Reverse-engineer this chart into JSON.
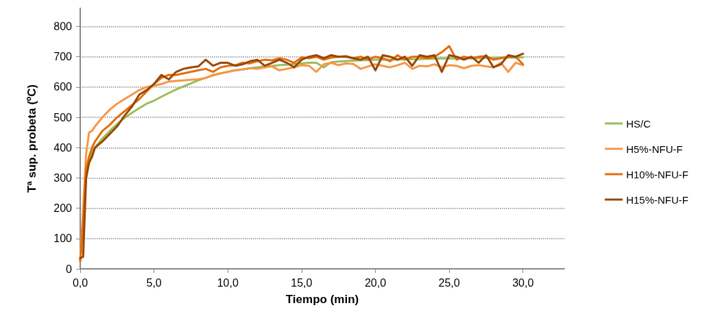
{
  "chart_data": {
    "type": "line",
    "xlabel": "Tiempo (min)",
    "ylabel": "Tª sup. probeta (ºC)",
    "x": [
      0,
      0.2,
      0.4,
      0.6,
      0.8,
      1,
      1.5,
      2,
      2.5,
      3,
      3.5,
      4,
      4.5,
      5,
      5.5,
      6,
      6.5,
      7,
      7.5,
      8,
      8.5,
      9,
      9.5,
      10,
      10.5,
      11,
      11.5,
      12,
      12.5,
      13,
      13.5,
      14,
      14.5,
      15,
      15.5,
      16,
      16.5,
      17,
      17.5,
      18,
      18.5,
      19,
      19.5,
      20,
      20.5,
      21,
      21.5,
      22,
      22.5,
      23,
      23.5,
      24,
      24.5,
      25,
      25.5,
      26,
      26.5,
      27,
      27.5,
      28,
      28.5,
      29,
      29.5,
      30
    ],
    "series": [
      {
        "name": "HS/C",
        "color": "#9bbb59",
        "values": [
          30,
          150,
          300,
          360,
          385,
          400,
          430,
          455,
          478,
          498,
          515,
          530,
          545,
          555,
          568,
          580,
          592,
          602,
          612,
          622,
          630,
          638,
          645,
          650,
          655,
          658,
          662,
          665,
          668,
          670,
          672,
          674,
          676,
          678,
          680,
          680,
          665,
          682,
          684,
          686,
          687,
          688,
          689,
          690,
          690,
          690,
          691,
          692,
          692,
          692,
          693,
          693,
          694,
          694,
          694,
          695,
          695,
          695,
          696,
          696,
          697,
          697,
          697,
          698
        ]
      },
      {
        "name": "H5%-NFU-F",
        "color": "#f79646",
        "values": [
          25,
          200,
          380,
          450,
          455,
          470,
          500,
          525,
          545,
          560,
          575,
          590,
          600,
          605,
          610,
          618,
          620,
          622,
          624,
          625,
          630,
          640,
          645,
          650,
          655,
          658,
          662,
          660,
          665,
          668,
          655,
          660,
          665,
          672,
          670,
          650,
          675,
          680,
          672,
          678,
          676,
          660,
          668,
          675,
          670,
          665,
          672,
          680,
          660,
          670,
          668,
          675,
          665,
          672,
          670,
          662,
          670,
          672,
          668,
          665,
          680,
          650,
          680,
          672
        ]
      },
      {
        "name": "H10%-NFU-F",
        "color": "#e46c0a",
        "values": [
          25,
          150,
          330,
          370,
          400,
          420,
          455,
          475,
          500,
          520,
          540,
          560,
          585,
          610,
          630,
          640,
          640,
          645,
          650,
          655,
          660,
          650,
          665,
          670,
          672,
          680,
          678,
          685,
          690,
          688,
          695,
          690,
          680,
          698,
          695,
          700,
          690,
          697,
          700,
          702,
          695,
          700,
          690,
          700,
          695,
          685,
          705,
          690,
          700,
          700,
          695,
          700,
          715,
          735,
          690,
          700,
          695,
          700,
          702,
          690,
          695,
          700,
          700,
          675
        ]
      },
      {
        "name": "H15%-NFU-F",
        "color": "#974706",
        "values": [
          35,
          40,
          300,
          350,
          370,
          400,
          420,
          445,
          470,
          505,
          535,
          575,
          590,
          610,
          640,
          625,
          650,
          660,
          665,
          668,
          690,
          670,
          680,
          680,
          670,
          675,
          685,
          690,
          670,
          680,
          690,
          680,
          665,
          690,
          700,
          705,
          695,
          705,
          700,
          700,
          695,
          690,
          700,
          655,
          705,
          700,
          690,
          700,
          670,
          705,
          700,
          705,
          650,
          705,
          700,
          690,
          700,
          680,
          705,
          665,
          675,
          705,
          700,
          710
        ]
      }
    ],
    "xlim": [
      0,
      32.8
    ],
    "xticks": [
      {
        "value": 0,
        "label": "0,0"
      },
      {
        "value": 5,
        "label": "5,0"
      },
      {
        "value": 10,
        "label": "10,0"
      },
      {
        "value": 15,
        "label": "15,0"
      },
      {
        "value": 20,
        "label": "20,0"
      },
      {
        "value": 25,
        "label": "25,0"
      },
      {
        "value": 30,
        "label": "30,0"
      }
    ],
    "ylim": [
      0,
      860
    ],
    "yticks": [
      0,
      100,
      200,
      300,
      400,
      500,
      600,
      700,
      800
    ],
    "grid": "y",
    "legend": "right",
    "marker": "none",
    "line_style": "solid"
  }
}
